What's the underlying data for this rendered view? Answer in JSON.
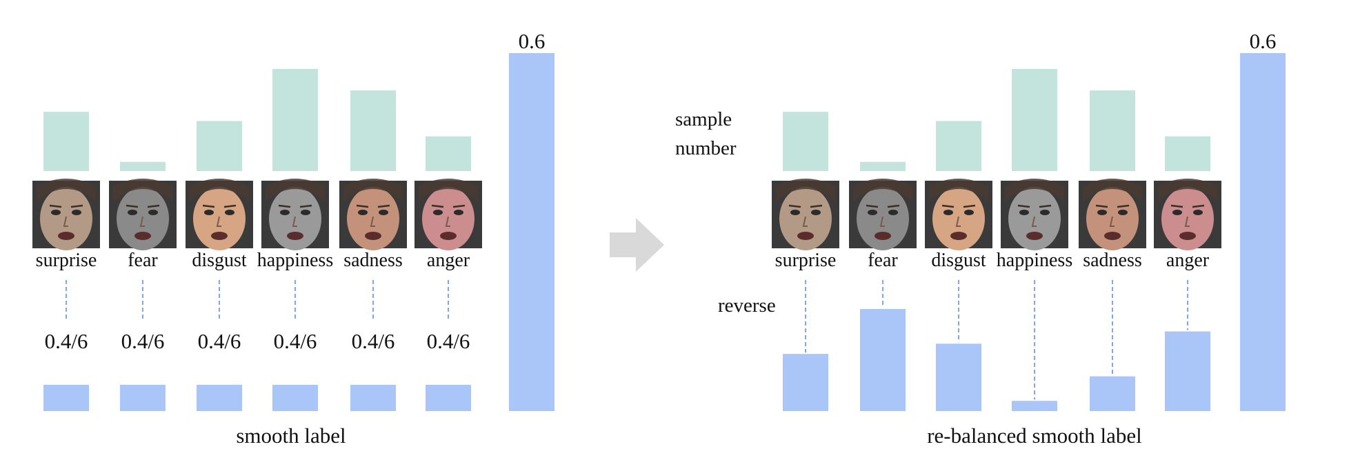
{
  "colors": {
    "sample_bar": "#c3e3dd",
    "label_bar": "#aac6f8",
    "dash": "#7fa6ee",
    "arrow": "#d9d9d9",
    "text": "#111111"
  },
  "emotions": [
    "surprise",
    "fear",
    "disgust",
    "happiness",
    "sadness",
    "anger"
  ],
  "face_images": [
    {
      "name": "surprise-face-image",
      "tone": "#b39a86"
    },
    {
      "name": "fear-face-image",
      "tone": "#8a8a8a"
    },
    {
      "name": "disgust-face-image",
      "tone": "#d6a583"
    },
    {
      "name": "happiness-face-image",
      "tone": "#9a9a9a"
    },
    {
      "name": "sadness-face-image",
      "tone": "#c4927a"
    },
    {
      "name": "anger-face-image",
      "tone": "#cc8d8f"
    }
  ],
  "left_panel": {
    "caption": "smooth label",
    "uniform_value_label": "0.4/6",
    "target_value_label": "0.6",
    "sample_levels": [
      0.58,
      0.09,
      0.49,
      1.0,
      0.79,
      0.34
    ],
    "label_values": [
      0.0667,
      0.0667,
      0.0667,
      0.0667,
      0.0667,
      0.0667
    ],
    "target_value": 0.6
  },
  "right_panel": {
    "caption": "re-balanced smooth label",
    "target_value_label": "0.6",
    "sample_number_label": "sample\nnumber",
    "reverse_label": "reverse",
    "sample_levels": [
      0.58,
      0.09,
      0.49,
      1.0,
      0.79,
      0.34
    ],
    "label_levels": [
      0.56,
      1.0,
      0.66,
      0.1,
      0.34,
      0.78
    ],
    "target_value": 0.6
  }
}
